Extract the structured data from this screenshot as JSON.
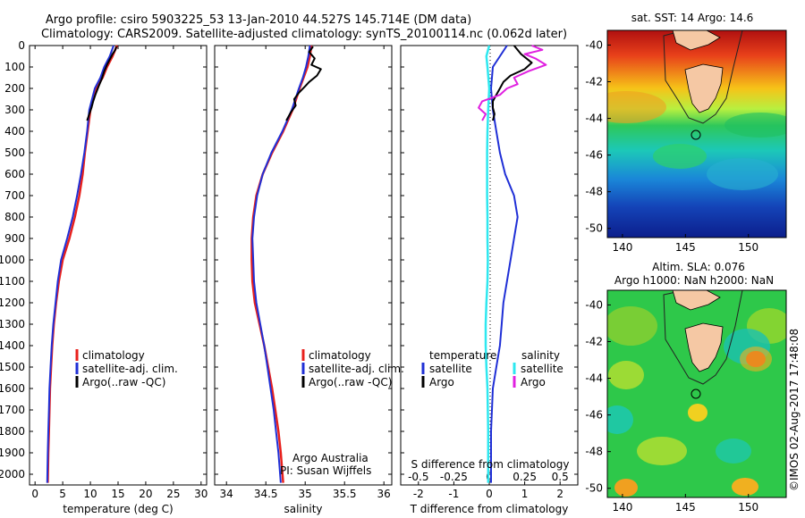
{
  "colors": {
    "climatology": "#e8201c",
    "satellite_adj": "#1f2fd6",
    "argo": "#000000",
    "temp_satellite": "#1f2fd6",
    "sal_satellite": "#2ee8f0",
    "sal_argo": "#e020e0",
    "land": "#f5c8a4"
  },
  "title": {
    "line1": "Argo profile: csiro 5903225_53 13-Jan-2010 44.527S 145.714E (DM data)",
    "line2": "Climatology: CARS2009. Satellite-adjusted climatology: synTS_20100114.nc (0.062d later)"
  },
  "legend_profile": {
    "climatology": "climatology",
    "satellite_adj": "satellite-adj. clim.",
    "argo": "Argo(..raw -QC)"
  },
  "legend_diff": {
    "temperature_header": "temperature",
    "salinity_header": "salinity",
    "satellite": "satellite",
    "argo": "Argo"
  },
  "annotations": {
    "argo_australia": "Argo Australia",
    "pi": "PI: Susan Wijffels",
    "imos_stamp": "©IMOS 02-Aug-2017 17:48:08"
  },
  "map_titles": {
    "sst": "sat. SST: 14 Argo: 14.6",
    "sla_line1": "Altim. SLA: 0.076",
    "sla_line2": "Argo h1000: NaN h2000: NaN"
  },
  "chart_data": [
    {
      "type": "line",
      "panel": "temperature",
      "xlabel": "temperature (deg C)",
      "ylabel": "",
      "xlim": [
        -1,
        31
      ],
      "ylim": [
        2050,
        0
      ],
      "x_ticks": [
        0,
        5,
        10,
        15,
        20,
        25,
        30
      ],
      "y_ticks": [
        0,
        100,
        200,
        300,
        400,
        500,
        600,
        700,
        800,
        900,
        1000,
        1100,
        1200,
        1300,
        1400,
        1500,
        1600,
        1700,
        1800,
        1900,
        2000
      ],
      "series": [
        {
          "name": "climatology",
          "x": [
            14.8,
            14.0,
            13.0,
            12.2,
            11.0,
            10.0,
            9.5,
            9.0,
            8.6,
            8.0,
            7.2,
            6.2,
            5.0,
            4.3,
            3.8,
            3.4,
            3.1,
            2.9,
            2.7,
            2.6,
            2.5,
            2.4,
            2.3
          ],
          "y": [
            0,
            50,
            100,
            150,
            200,
            300,
            400,
            500,
            600,
            700,
            800,
            900,
            1000,
            1100,
            1200,
            1300,
            1400,
            1500,
            1600,
            1700,
            1800,
            1900,
            2040
          ]
        },
        {
          "name": "satellite-adj. clim.",
          "x": [
            14.2,
            13.5,
            12.5,
            11.8,
            10.8,
            9.8,
            9.4,
            8.9,
            8.3,
            7.6,
            6.8,
            5.8,
            4.7,
            4.1,
            3.7,
            3.3,
            3.0,
            2.8,
            2.6,
            2.5,
            2.4,
            2.3,
            2.2
          ],
          "y": [
            0,
            50,
            100,
            150,
            200,
            300,
            400,
            500,
            600,
            700,
            800,
            900,
            1000,
            1100,
            1200,
            1300,
            1400,
            1500,
            1600,
            1700,
            1800,
            1900,
            2040
          ]
        },
        {
          "name": "Argo(..raw -QC)",
          "x": [
            14.7,
            14.5,
            14.0,
            13.6,
            13.0,
            12.5,
            12.0,
            11.5,
            10.9,
            10.5,
            10.2,
            9.8,
            9.4
          ],
          "y": [
            5,
            20,
            40,
            60,
            90,
            120,
            160,
            190,
            230,
            260,
            290,
            320,
            350
          ]
        }
      ]
    },
    {
      "type": "line",
      "panel": "salinity",
      "xlabel": "salinity",
      "xlim": [
        33.85,
        36.1
      ],
      "ylim": [
        2050,
        0
      ],
      "x_ticks": [
        34,
        34.5,
        35,
        35.5,
        36
      ],
      "series": [
        {
          "name": "climatology",
          "x": [
            35.08,
            35.06,
            35.03,
            34.98,
            34.93,
            34.84,
            34.72,
            34.58,
            34.46,
            34.38,
            34.34,
            34.32,
            34.32,
            34.33,
            34.36,
            34.42,
            34.48,
            34.53,
            34.58,
            34.62,
            34.66,
            34.69,
            34.72
          ],
          "y": [
            0,
            50,
            100,
            150,
            200,
            300,
            400,
            500,
            600,
            700,
            800,
            900,
            1000,
            1100,
            1200,
            1300,
            1400,
            1500,
            1600,
            1700,
            1800,
            1900,
            2040
          ]
        },
        {
          "name": "satellite-adj. clim.",
          "x": [
            35.06,
            35.04,
            35.01,
            34.97,
            34.92,
            34.83,
            34.71,
            34.57,
            34.46,
            34.39,
            34.35,
            34.33,
            34.34,
            34.35,
            34.38,
            34.43,
            34.48,
            34.52,
            34.56,
            34.6,
            34.63,
            34.66,
            34.69
          ],
          "y": [
            0,
            50,
            100,
            150,
            200,
            300,
            400,
            500,
            600,
            700,
            800,
            900,
            1000,
            1100,
            1200,
            1300,
            1400,
            1500,
            1600,
            1700,
            1800,
            1900,
            2040
          ]
        },
        {
          "name": "Argo(..raw -QC)",
          "x": [
            35.1,
            35.05,
            35.12,
            35.08,
            35.2,
            35.15,
            35.05,
            35.0,
            34.92,
            34.86,
            34.88,
            34.82,
            34.76
          ],
          "y": [
            5,
            30,
            60,
            90,
            110,
            140,
            170,
            190,
            220,
            250,
            280,
            310,
            350
          ]
        }
      ]
    },
    {
      "type": "line",
      "panel": "difference",
      "xlabel": "T difference from climatology",
      "top_label": "S difference from climatology",
      "xlim": [
        -2.5,
        2.5
      ],
      "ylim": [
        2050,
        0
      ],
      "x_ticks_T": [
        -2,
        -1,
        0,
        1,
        2
      ],
      "x_ticks_S": [
        "-0.5",
        "-0.25",
        "0",
        "0.25",
        "0.5"
      ],
      "series": [
        {
          "name": "temperature satellite",
          "x": [
            0.5,
            0.3,
            0.1,
            0.05,
            0.1,
            0.2,
            0.3,
            0.45,
            0.7,
            0.8,
            0.7,
            0.6,
            0.5,
            0.4,
            0.35,
            0.3,
            0.2,
            0.1,
            0.05,
            0.05,
            0.05
          ],
          "y": [
            0,
            50,
            100,
            200,
            300,
            400,
            500,
            600,
            700,
            800,
            900,
            1000,
            1100,
            1200,
            1300,
            1400,
            1500,
            1600,
            1800,
            2000,
            2040
          ]
        },
        {
          "name": "temperature Argo",
          "x": [
            0.7,
            0.9,
            1.2,
            1.0,
            0.6,
            0.4,
            0.3,
            0.2,
            0.1,
            0.1,
            0.15,
            0.1
          ],
          "y": [
            0,
            40,
            80,
            110,
            140,
            170,
            200,
            230,
            260,
            290,
            320,
            350
          ]
        },
        {
          "name": "salinity satellite",
          "x": [
            0.0,
            -0.08,
            -0.05,
            0.0,
            -0.03,
            -0.05,
            -0.06,
            -0.06,
            -0.06,
            -0.05,
            -0.05,
            -0.04,
            -0.05,
            -0.08,
            -0.1,
            -0.1,
            -0.08,
            -0.05,
            -0.03,
            -0.03
          ],
          "y": [
            0,
            50,
            100,
            200,
            300,
            400,
            500,
            600,
            700,
            800,
            900,
            1000,
            1100,
            1200,
            1300,
            1400,
            1500,
            1600,
            1800,
            2040
          ]
        },
        {
          "name": "salinity Argo",
          "x": [
            1.2,
            1.5,
            1.0,
            1.3,
            1.6,
            1.1,
            0.7,
            0.8,
            0.5,
            0.3,
            -0.2,
            -0.3,
            -0.1,
            -0.2
          ],
          "y": [
            0,
            20,
            40,
            60,
            90,
            120,
            150,
            180,
            200,
            230,
            260,
            290,
            320,
            350
          ]
        }
      ]
    }
  ],
  "maps": [
    {
      "name": "sst",
      "x_ticks": [
        "140",
        "145",
        "150"
      ],
      "y_ticks": [
        "-40",
        "-42",
        "-44",
        "-46",
        "-48",
        "-50"
      ],
      "argo_lon": 145.714,
      "argo_lat": -44.527
    },
    {
      "name": "sla",
      "x_ticks": [
        "140",
        "145",
        "150"
      ],
      "y_ticks": [
        "-40",
        "-42",
        "-44",
        "-46",
        "-48",
        "-50"
      ],
      "argo_lon": 145.714,
      "argo_lat": -44.527
    }
  ]
}
